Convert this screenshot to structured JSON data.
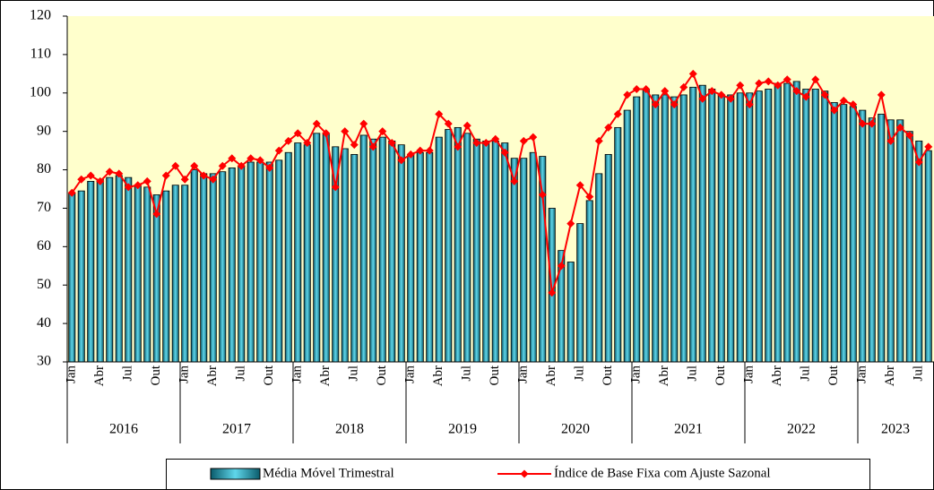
{
  "chart_data": {
    "type": "combo",
    "categories": [
      "Jan",
      null,
      null,
      "Abr",
      null,
      null,
      "Jul",
      null,
      null,
      "Out",
      null,
      null,
      "Jan",
      null,
      null,
      "Abr",
      null,
      null,
      "Jul",
      null,
      null,
      "Out",
      null,
      null,
      "Jan",
      null,
      null,
      "Abr",
      null,
      null,
      "Jul",
      null,
      null,
      "Out",
      null,
      null,
      "Jan",
      null,
      null,
      "Abr",
      null,
      null,
      "Jul",
      null,
      null,
      "Out",
      null,
      null,
      "Jan",
      null,
      null,
      "Abr",
      null,
      null,
      "Jul",
      null,
      null,
      "Out",
      null,
      null,
      "Jan",
      null,
      null,
      "Abr",
      null,
      null,
      "Jul",
      null,
      null,
      "Out",
      null,
      null,
      "Jan",
      null,
      null,
      "Abr",
      null,
      null,
      "Jul",
      null,
      null,
      "Out",
      null,
      null,
      "Jan",
      null,
      null,
      "Abr",
      null,
      null,
      "Jul",
      null
    ],
    "groups": [
      "2016",
      "2017",
      "2018",
      "2019",
      "2020",
      "2021",
      "2022",
      "2023"
    ],
    "series": [
      {
        "name": "Média Móvel Trimestral",
        "type": "bar",
        "color": "#1e9fb5",
        "values": [
          74,
          74.5,
          77,
          77.5,
          78,
          78.5,
          78,
          76,
          75.5,
          73.5,
          74.5,
          76,
          76,
          80,
          79,
          79,
          79.5,
          80.5,
          81,
          82,
          82,
          82,
          82.5,
          84.5,
          87,
          86.5,
          89.5,
          89.5,
          86,
          85.5,
          84,
          89,
          88,
          88.5,
          87.5,
          86.5,
          84,
          84.5,
          84.5,
          88.5,
          90.5,
          91,
          89.5,
          88,
          87.5,
          87.5,
          87,
          83,
          83,
          84.5,
          83.5,
          70,
          59,
          56,
          66,
          72,
          79,
          84,
          91,
          95.5,
          99,
          101,
          99.5,
          99.5,
          99,
          99.5,
          101.5,
          102,
          101,
          99.5,
          99.5,
          100,
          100,
          100.5,
          101,
          102.5,
          102.5,
          103,
          101,
          101,
          100.5,
          97.5,
          97,
          96.5,
          95.5,
          93.5,
          94.5,
          93,
          93,
          90,
          87.5,
          85
        ]
      },
      {
        "name": "Índice de Base Fixa com Ajuste Sazonal",
        "type": "line",
        "color": "#ff0000",
        "values": [
          74,
          77.5,
          78.5,
          77,
          79.5,
          79,
          75.5,
          76,
          77,
          68.5,
          78.5,
          81,
          77.5,
          81,
          78.5,
          77.5,
          81,
          83,
          81,
          83,
          82.5,
          80.5,
          85,
          87.5,
          89.5,
          87,
          92,
          89.5,
          75.5,
          90,
          86.5,
          92,
          86,
          90,
          87,
          82.5,
          84,
          85,
          85,
          94.5,
          92,
          86,
          91.5,
          87,
          87,
          88,
          84.5,
          77,
          87.5,
          88.5,
          73.5,
          48,
          55,
          66,
          76,
          73,
          87.5,
          91,
          94.5,
          99.5,
          101,
          101,
          97,
          100.5,
          97,
          101.5,
          105,
          98.5,
          100.5,
          99.5,
          98.5,
          102,
          97,
          102.5,
          103,
          102,
          103.5,
          100.5,
          99,
          103.5,
          99.5,
          95.5,
          98,
          97,
          92,
          92,
          99.5,
          87.5,
          91,
          89,
          82,
          86
        ]
      }
    ],
    "ylim": [
      30,
      120
    ],
    "yticks": [
      30,
      40,
      50,
      60,
      70,
      80,
      90,
      100,
      110,
      120
    ],
    "grid": false,
    "plot_background": "#ffffcc",
    "legend": "bottom"
  }
}
